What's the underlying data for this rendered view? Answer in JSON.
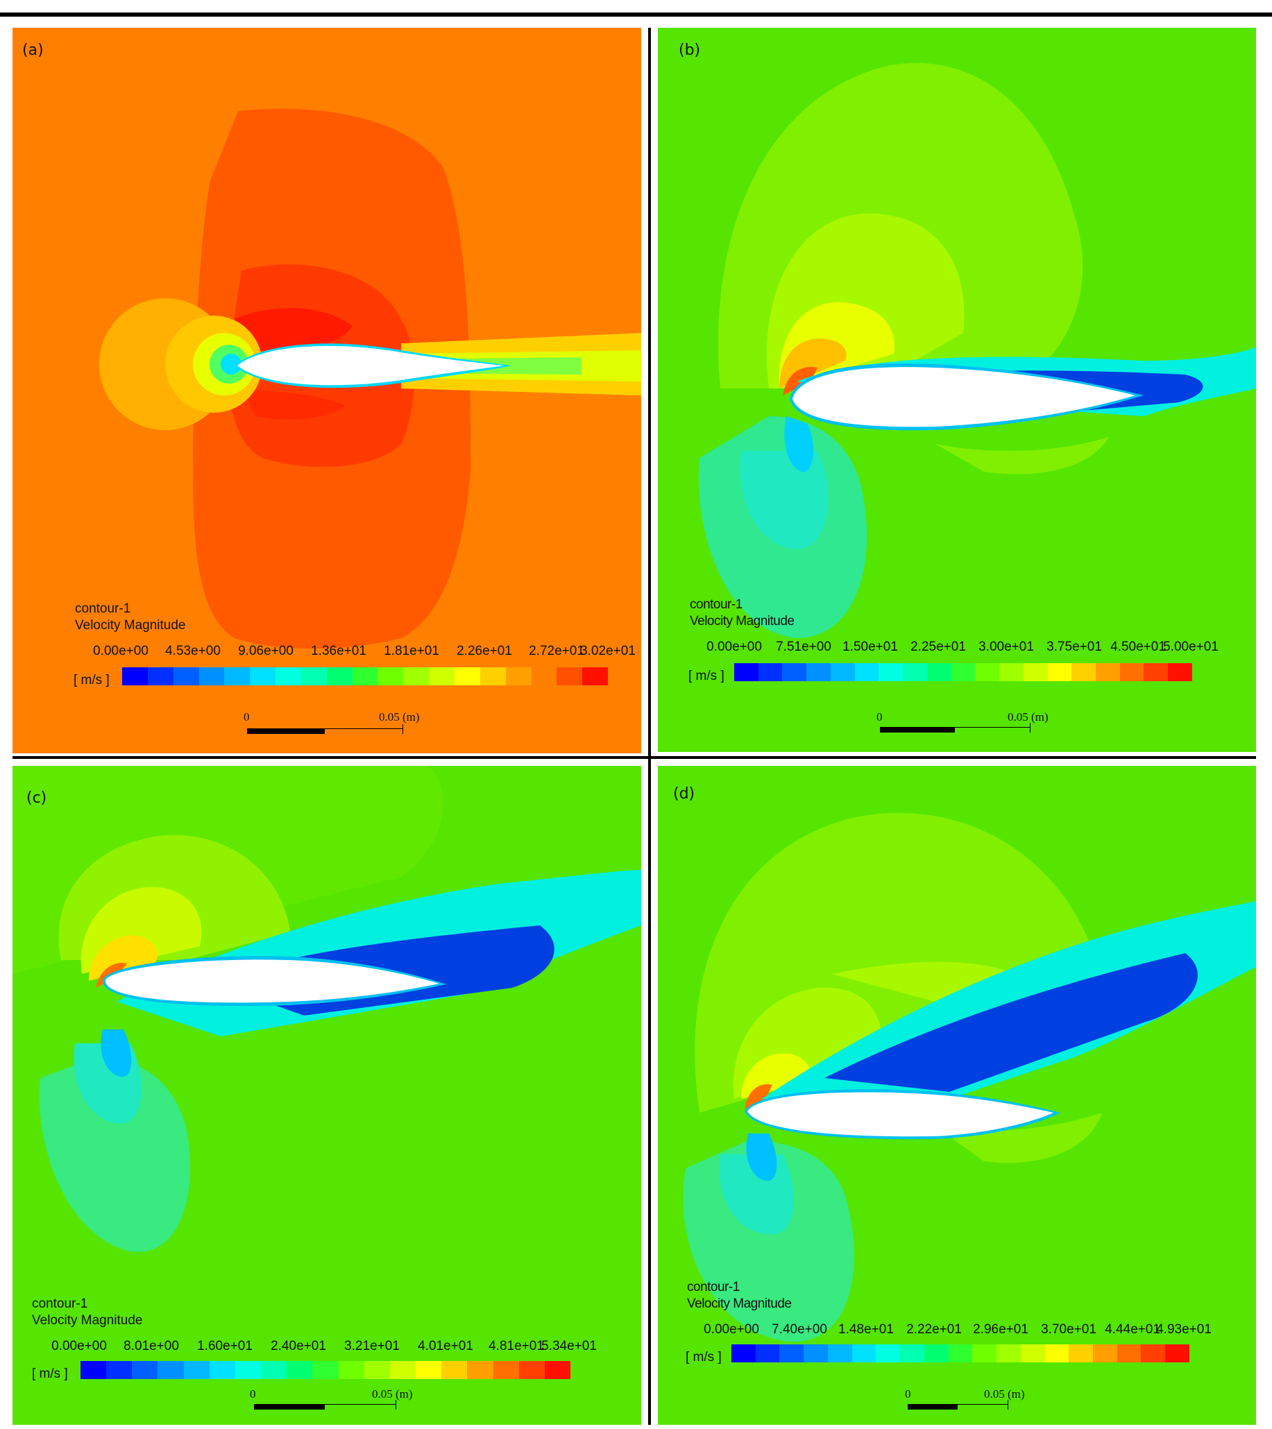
{
  "panels": [
    {
      "label": "(a)",
      "contour_name": "contour-1",
      "variable": "Velocity Magnitude",
      "unit": "[ m/s ]",
      "ticks": [
        "0.00e+00",
        "4.53e+00",
        "9.06e+00",
        "1.36e+01",
        "1.81e+01",
        "2.26e+01",
        "2.72e+01",
        "3.02e+01"
      ],
      "scale_zero": "0",
      "scale_length": "0.05 (m)",
      "background": "#ff8000"
    },
    {
      "label": "(b)",
      "contour_name": "contour-1",
      "variable": "Velocity Magnitude",
      "unit": "[ m/s ]",
      "ticks": [
        "0.00e+00",
        "7.51e+00",
        "1.50e+01",
        "2.25e+01",
        "3.00e+01",
        "3.75e+01",
        "4.50e+01",
        "5.00e+01"
      ],
      "scale_zero": "0",
      "scale_length": "0.05 (m)",
      "background": "#55e500"
    },
    {
      "label": "(c)",
      "contour_name": "contour-1",
      "variable": "Velocity Magnitude",
      "unit": "[ m/s ]",
      "ticks": [
        "0.00e+00",
        "8.01e+00",
        "1.60e+01",
        "2.40e+01",
        "3.21e+01",
        "4.01e+01",
        "4.81e+01",
        "5.34e+01"
      ],
      "scale_zero": "0",
      "scale_length": "0.05 (m)",
      "background": "#55e500"
    },
    {
      "label": "(d)",
      "contour_name": "contour-1",
      "variable": "Velocity Magnitude",
      "unit": "[ m/s ]",
      "ticks": [
        "0.00e+00",
        "7.40e+00",
        "1.48e+01",
        "2.22e+01",
        "2.96e+01",
        "3.70e+01",
        "4.44e+01",
        "4.93e+01"
      ],
      "scale_zero": "0",
      "scale_length": "0.05 (m)",
      "background": "#55e500"
    }
  ],
  "colormap": [
    "#0000ff",
    "#0030ff",
    "#0060ff",
    "#0090ff",
    "#00b8ff",
    "#00e0ff",
    "#00ffe0",
    "#00ffb0",
    "#00ff70",
    "#30ff30",
    "#70ff00",
    "#a0ff00",
    "#d0ff00",
    "#ffff00",
    "#ffd000",
    "#ffa000",
    "#ff7000",
    "#ff4000",
    "#ff1000"
  ]
}
